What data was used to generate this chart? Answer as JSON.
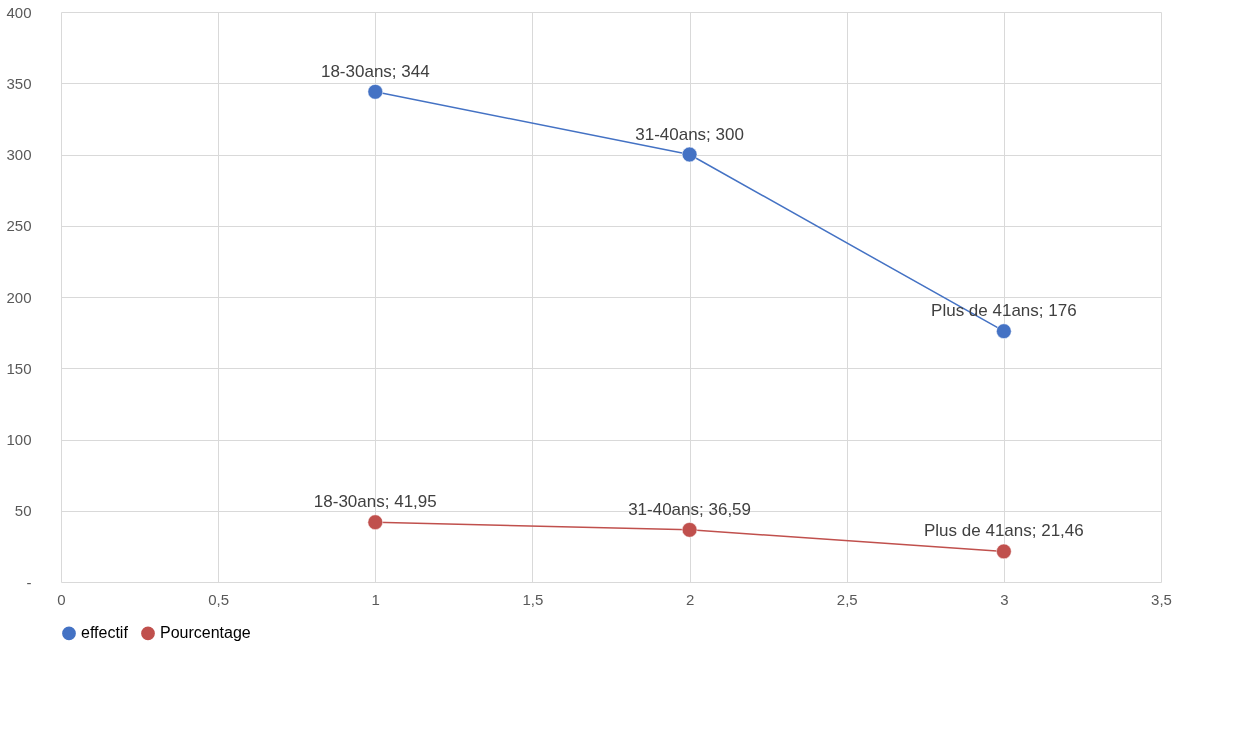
{
  "chart_data": {
    "type": "line",
    "x": [
      1,
      2,
      3
    ],
    "series": [
      {
        "name": "effectif",
        "color": "#4472c4",
        "values": [
          344,
          300,
          176
        ],
        "value_labels": [
          "18-30ans;  344",
          "31-40ans;  300",
          "Plus de 41ans;  176"
        ]
      },
      {
        "name": "Pourcentage",
        "color": "#c0504d",
        "values": [
          41.95,
          36.59,
          21.46
        ],
        "value_labels": [
          "18-30ans;  41,95",
          "31-40ans;  36,59",
          "Plus de 41ans;  21,46"
        ]
      }
    ],
    "xlim": [
      0,
      3.5
    ],
    "xticks": [
      0,
      {
        "value": 0.5,
        "label": "0,5"
      },
      1,
      {
        "value": 1.5,
        "label": "1,5"
      },
      2,
      {
        "value": 2.5,
        "label": "2,5"
      },
      3,
      {
        "value": 3.5,
        "label": "3,5"
      }
    ],
    "ylim": [
      0,
      400
    ],
    "yticks": [
      {
        "value": 0,
        "label": "-"
      },
      50,
      100,
      150,
      200,
      250,
      300,
      350,
      400
    ],
    "grid": true,
    "legend": "bottom",
    "marker": "circle",
    "line_style": "solid"
  }
}
